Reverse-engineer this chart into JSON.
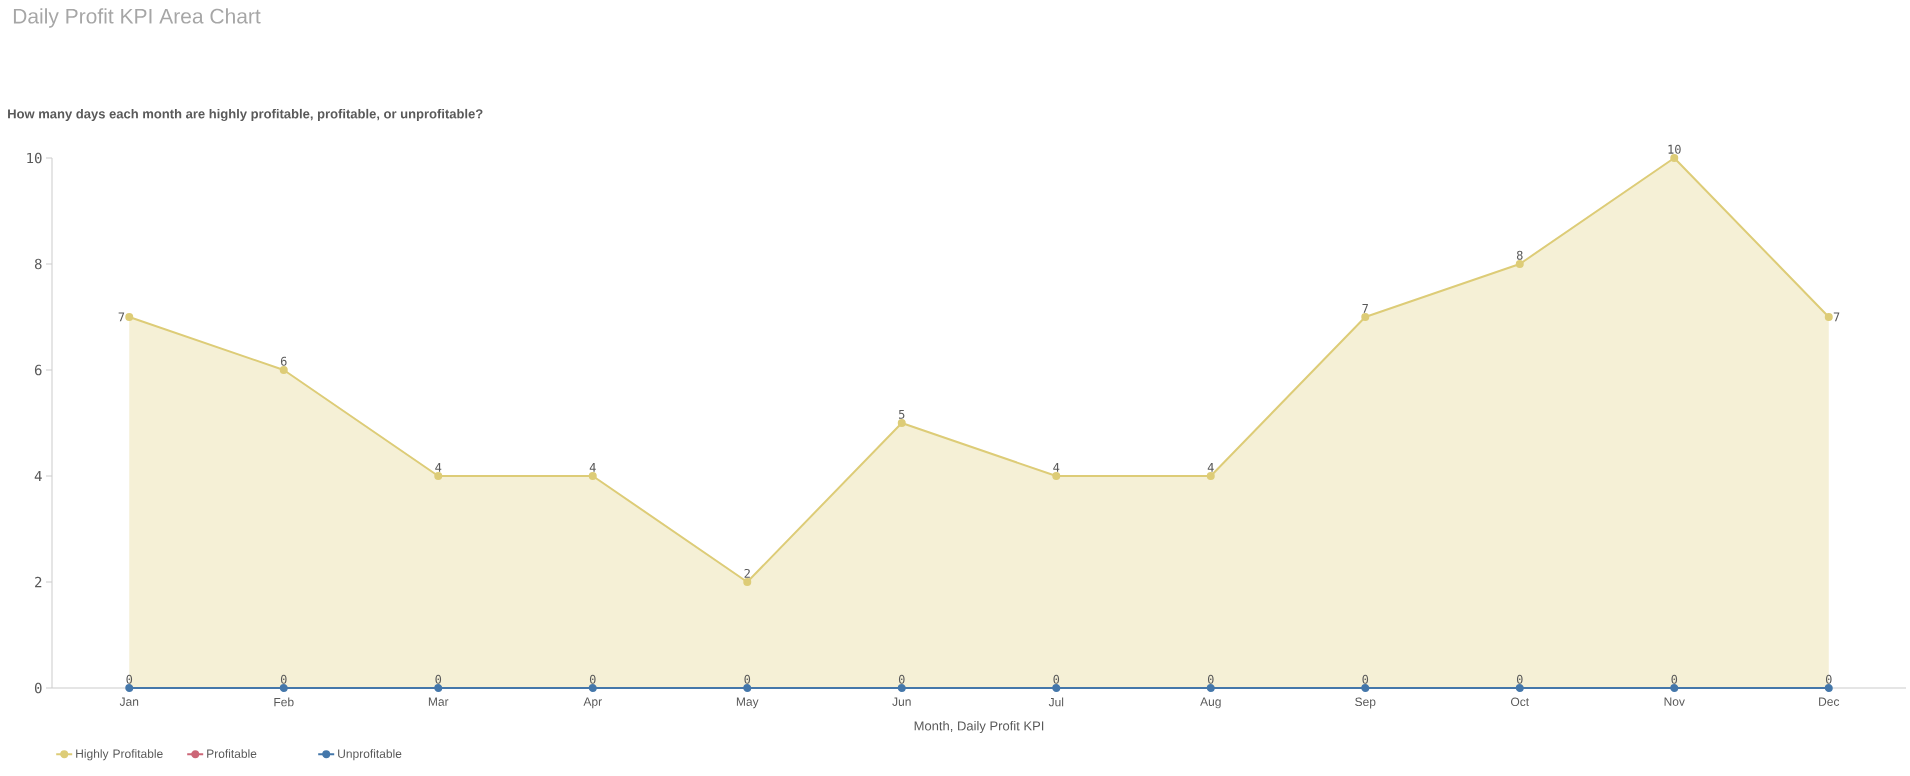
{
  "chart_data": {
    "type": "area",
    "title": "Daily Profit KPI Area Chart",
    "subtitle": "How many days each month are highly profitable, profitable, or unprofitable?",
    "xlabel": "Month, Daily Profit KPI",
    "categories": [
      "Jan",
      "Feb",
      "Mar",
      "Apr",
      "May",
      "Jun",
      "Jul",
      "Aug",
      "Sep",
      "Oct",
      "Nov",
      "Dec"
    ],
    "series": [
      {
        "name": "Highly Profitable",
        "color": "#ddcc77",
        "values": [
          7,
          6,
          4,
          4,
          2,
          5,
          4,
          4,
          7,
          8,
          10,
          7
        ]
      },
      {
        "name": "Profitable",
        "color": "#cc6677",
        "values": [
          null,
          null,
          null,
          null,
          null,
          null,
          null,
          null,
          null,
          null,
          null,
          null
        ]
      },
      {
        "name": "Unprofitable",
        "color": "#4477aa",
        "type": "line",
        "values": [
          0,
          0,
          0,
          0,
          0,
          0,
          0,
          0,
          0,
          0,
          0,
          0
        ]
      }
    ],
    "ylim": [
      0,
      10
    ],
    "yticks": [
      0,
      2,
      4,
      6,
      8,
      10
    ],
    "legend": "bottom left",
    "marker": "circle",
    "line_style": "solid",
    "data_labels": true
  }
}
